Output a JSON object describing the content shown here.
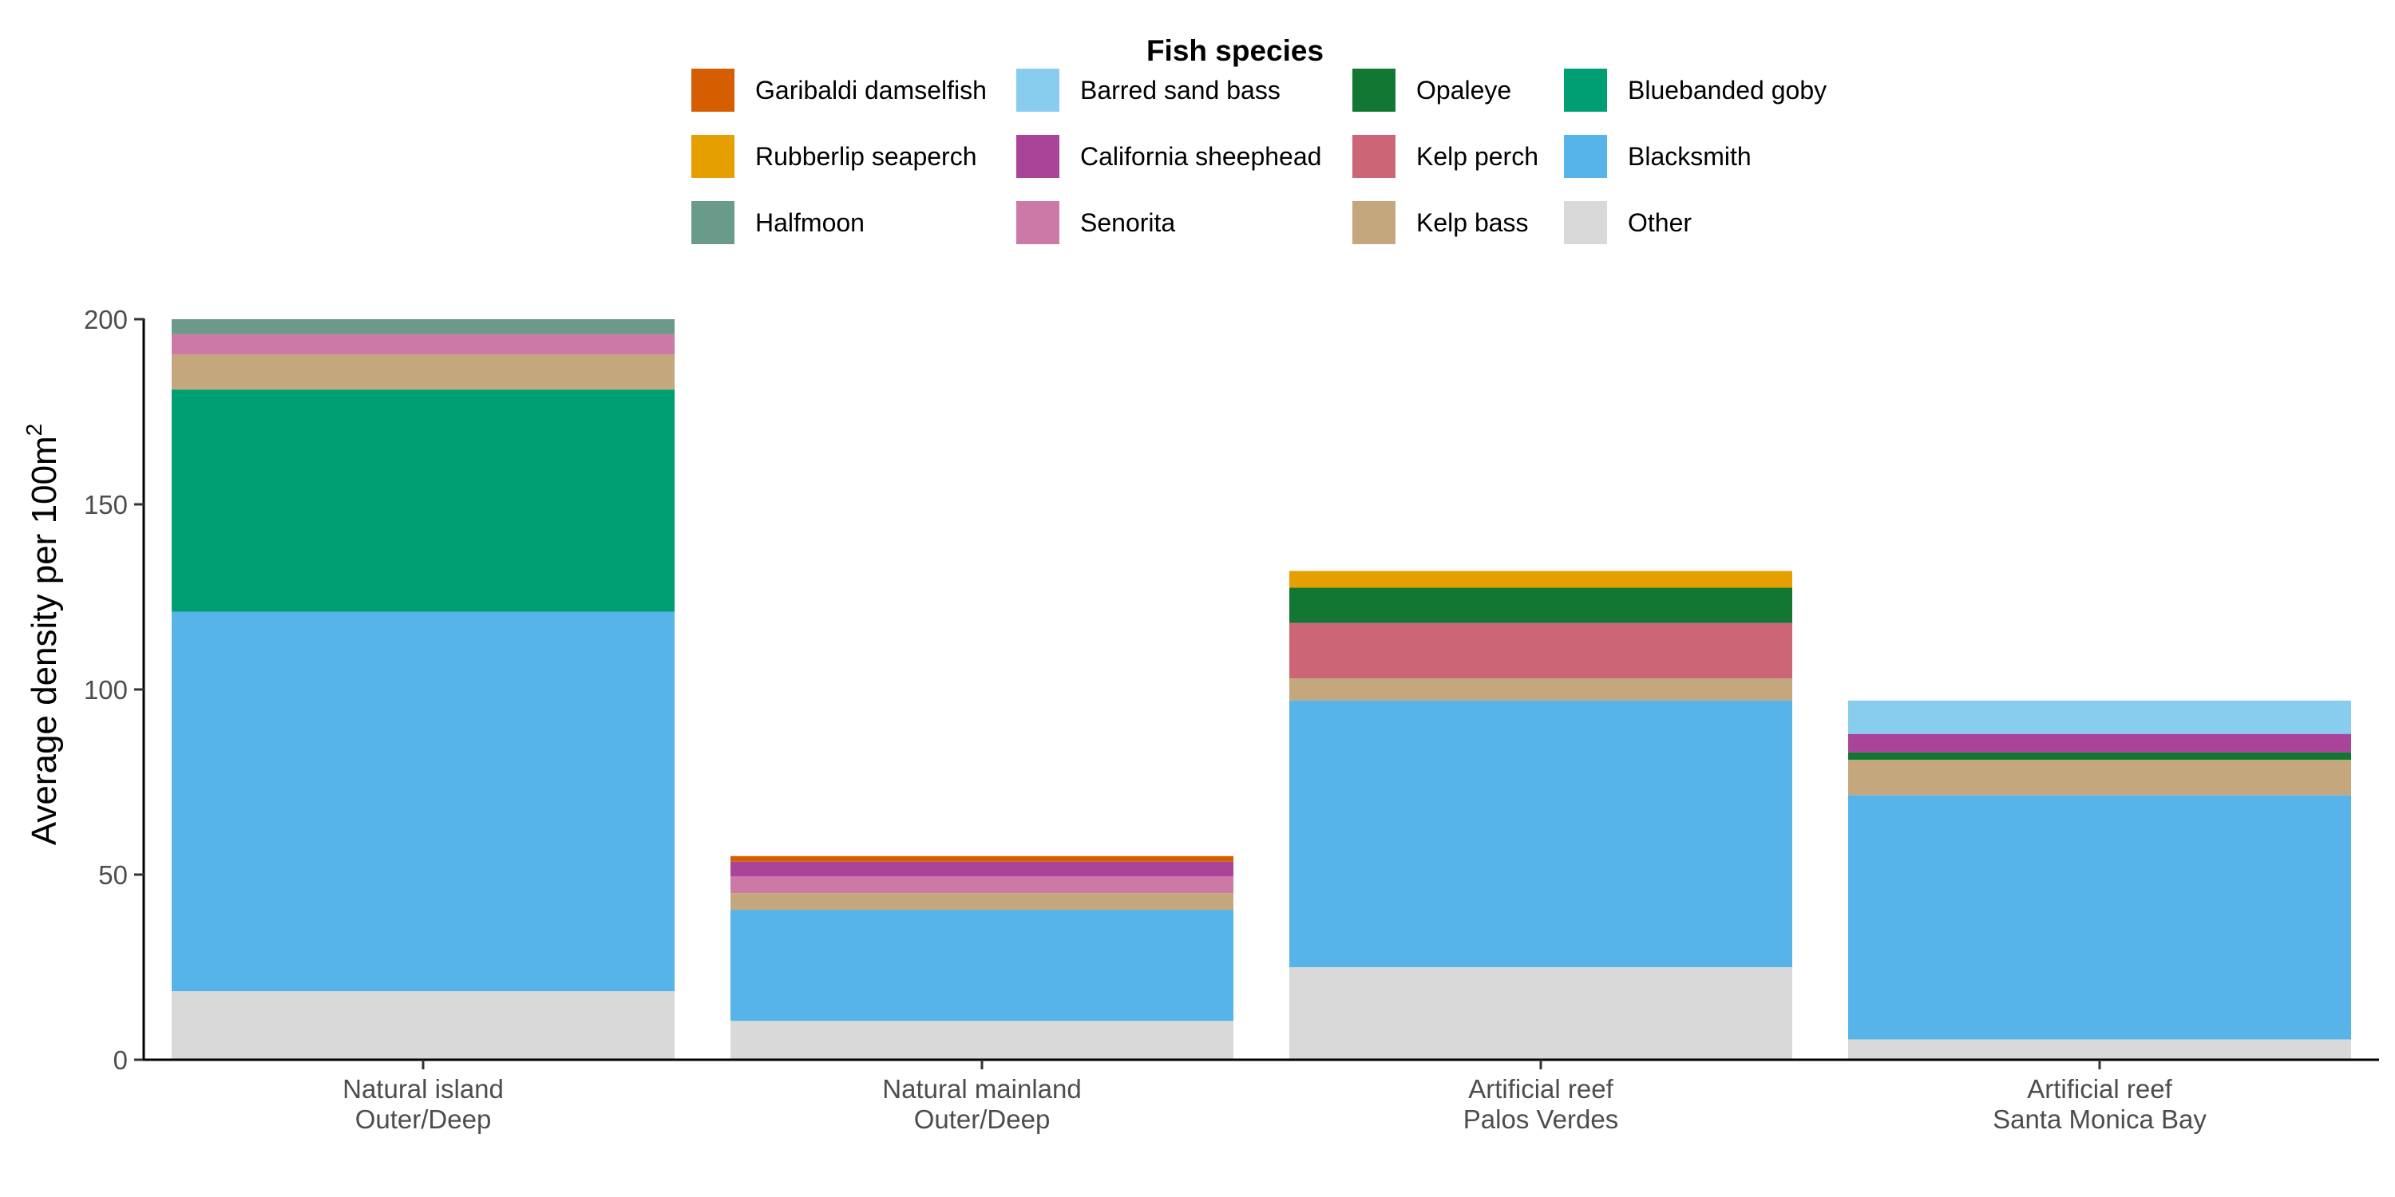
{
  "chart_data": {
    "type": "bar",
    "stacked": true,
    "legend_title": "Fish species",
    "legend_position": "top",
    "ylabel": "Average density per 100m",
    "ylabel_superscript": "2",
    "xlabel": "",
    "ylim": [
      0,
      200
    ],
    "yticks": [
      0,
      50,
      100,
      150,
      200
    ],
    "grid": false,
    "categories": [
      [
        "Natural island",
        "Outer/Deep"
      ],
      [
        "Natural mainland",
        "Outer/Deep"
      ],
      [
        "Artificial reef",
        "Palos Verdes"
      ],
      [
        "Artificial reef",
        "Santa Monica Bay"
      ]
    ],
    "legend_order": [
      "Garibaldi damselfish",
      "Barred sand bass",
      "Opaleye",
      "Bluebanded goby",
      "Rubberlip seaperch",
      "California sheephead",
      "Kelp perch",
      "Blacksmith",
      "Halfmoon",
      "Senorita",
      "Kelp bass",
      "Other"
    ],
    "series": [
      {
        "name": "Other",
        "color": "#D9D9D9",
        "values": [
          18.5,
          10.5,
          25,
          5.5
        ]
      },
      {
        "name": "Blacksmith",
        "color": "#56B4E9",
        "values": [
          102.5,
          30,
          72,
          66
        ]
      },
      {
        "name": "Bluebanded goby",
        "color": "#009E73",
        "values": [
          60,
          0,
          0,
          0
        ]
      },
      {
        "name": "Kelp bass",
        "color": "#C4A77D",
        "values": [
          9.5,
          4.5,
          6,
          9.5
        ]
      },
      {
        "name": "Kelp perch",
        "color": "#CC6677",
        "values": [
          0,
          0,
          15,
          0
        ]
      },
      {
        "name": "Opaleye",
        "color": "#117733",
        "values": [
          0,
          0,
          9.5,
          2
        ]
      },
      {
        "name": "Senorita",
        "color": "#CC79A7",
        "values": [
          5.5,
          4.5,
          0,
          0
        ]
      },
      {
        "name": "California sheephead",
        "color": "#AA4499",
        "values": [
          0,
          4,
          0,
          5
        ]
      },
      {
        "name": "Halfmoon",
        "color": "#6A9A8A",
        "values": [
          4,
          0,
          0,
          0
        ]
      },
      {
        "name": "Barred sand bass",
        "color": "#88CCEE",
        "values": [
          0,
          0,
          0,
          9
        ]
      },
      {
        "name": "Rubberlip seaperch",
        "color": "#E69F00",
        "values": [
          0,
          0,
          4.5,
          0
        ]
      },
      {
        "name": "Garibaldi damselfish",
        "color": "#D55E00",
        "values": [
          0,
          1.5,
          0,
          0
        ]
      }
    ]
  }
}
